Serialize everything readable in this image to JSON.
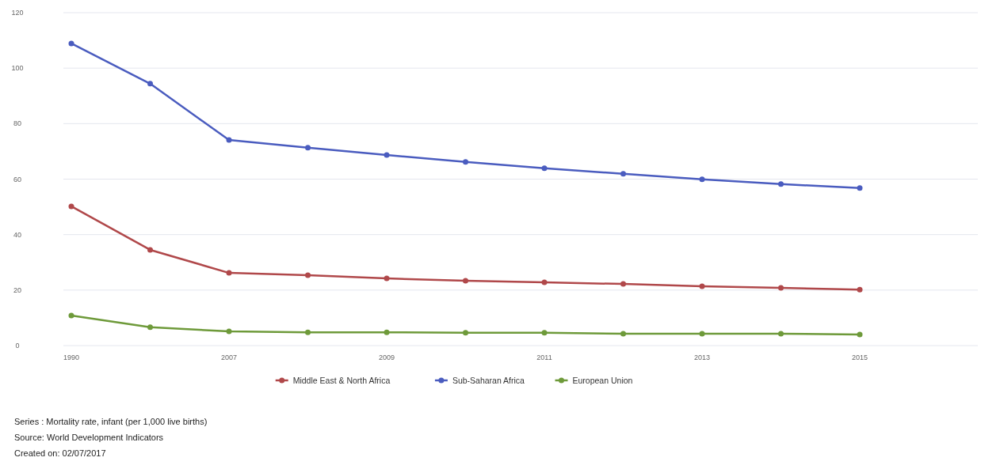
{
  "chart_data": {
    "type": "line",
    "categories": [
      "1990",
      null,
      "2007",
      null,
      "2009",
      null,
      "2011",
      null,
      "2013",
      null,
      "2015"
    ],
    "series": [
      {
        "name": "Middle East & North Africa",
        "color": "#b0484a",
        "values": [
          50.2,
          34.5,
          26.2,
          25.4,
          24.2,
          23.4,
          22.8,
          22.2,
          21.4,
          20.8,
          20.2
        ]
      },
      {
        "name": "Sub-Saharan Africa",
        "color": "#4a5cbf",
        "values": [
          108.9,
          94.4,
          74.1,
          71.3,
          68.7,
          66.2,
          63.9,
          61.9,
          59.9,
          58.2,
          56.8
        ]
      },
      {
        "name": "European Union",
        "color": "#6e9a3a",
        "values": [
          10.8,
          6.6,
          5.1,
          4.8,
          4.8,
          4.6,
          4.6,
          4.3,
          4.3,
          4.3,
          4.0
        ]
      }
    ],
    "ylim": [
      0,
      120
    ],
    "yticks": [
      0,
      20,
      40,
      60,
      80,
      100,
      120
    ],
    "grid": "y",
    "legend": "bottom",
    "marker": "circle",
    "line_style": "solid",
    "annotations": [
      "Series : Mortality rate, infant (per 1,000 live births)",
      "Source: World Development Indicators",
      "Created on: 02/07/2017"
    ]
  }
}
